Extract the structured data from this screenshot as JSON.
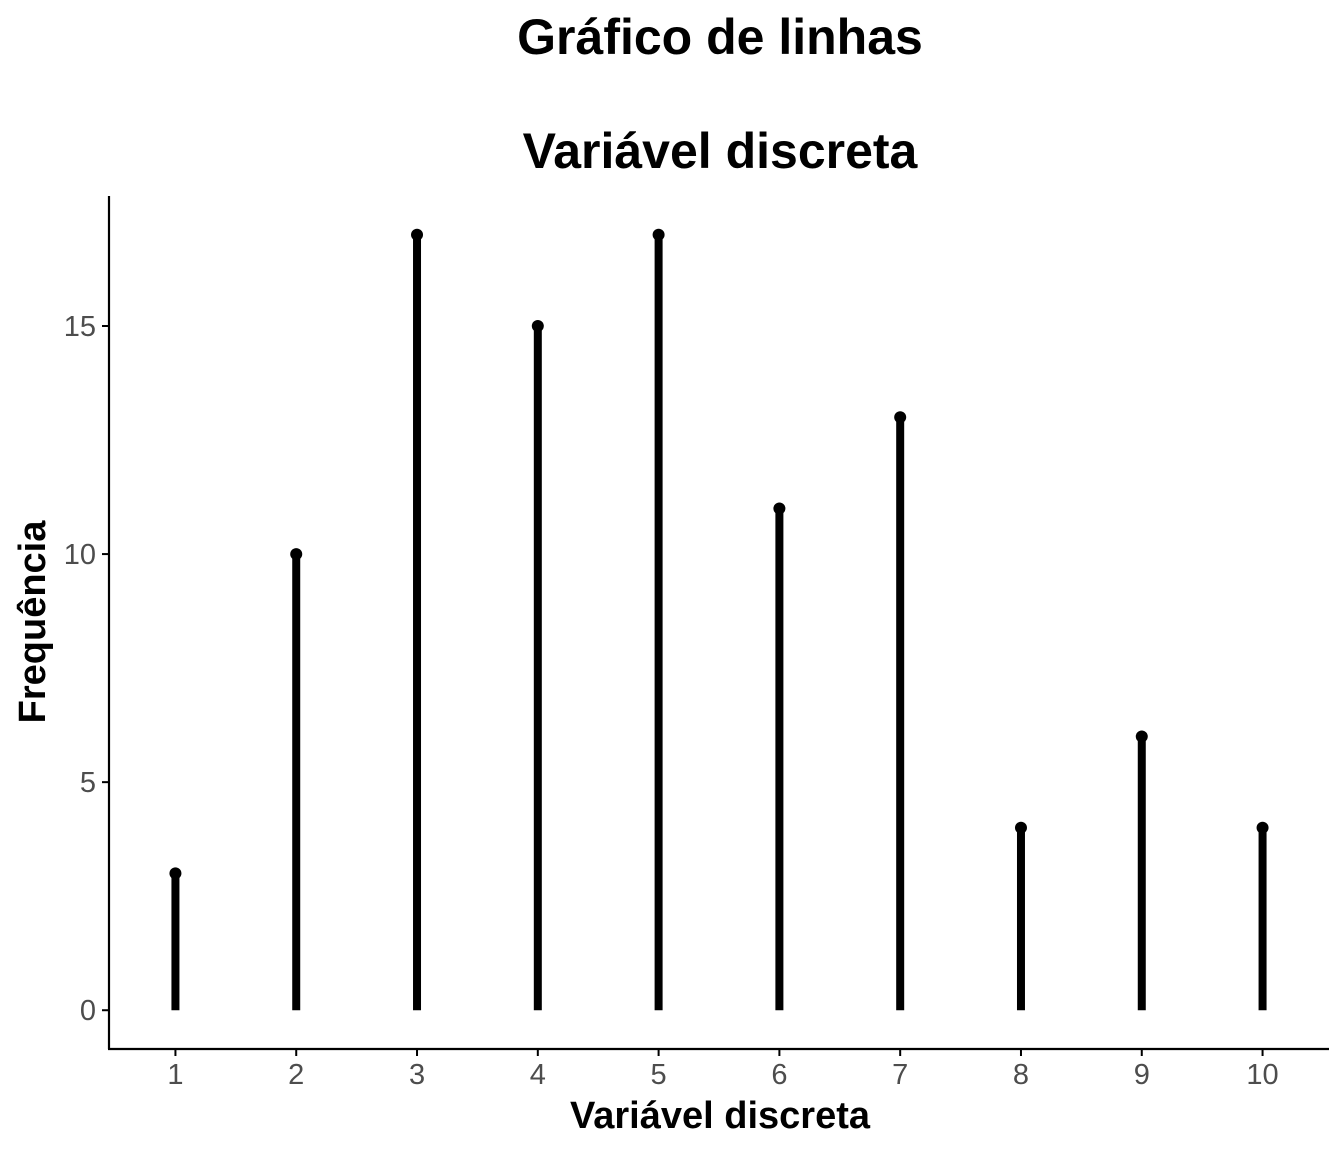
{
  "chart_data": {
    "type": "line",
    "subtype": "lollipop",
    "title": "Gráfico de linhas",
    "subtitle": "Variável discreta",
    "xlabel": "Variável discreta",
    "ylabel": "Frequência",
    "x": [
      1,
      2,
      3,
      4,
      5,
      6,
      7,
      8,
      9,
      10
    ],
    "values": [
      3,
      10,
      17,
      15,
      17,
      11,
      13,
      4,
      6,
      4
    ],
    "x_ticks": [
      "1",
      "2",
      "3",
      "4",
      "5",
      "6",
      "7",
      "8",
      "9",
      "10"
    ],
    "y_ticks": [
      "0",
      "5",
      "10",
      "15"
    ],
    "ylim": [
      -0.85,
      17.85
    ],
    "xlim": [
      0.45,
      10.55
    ],
    "grid": false,
    "legend": "none",
    "colors": {
      "mark": "#000000",
      "axis": "#000000",
      "tick_label": "#4d4d4d"
    }
  }
}
